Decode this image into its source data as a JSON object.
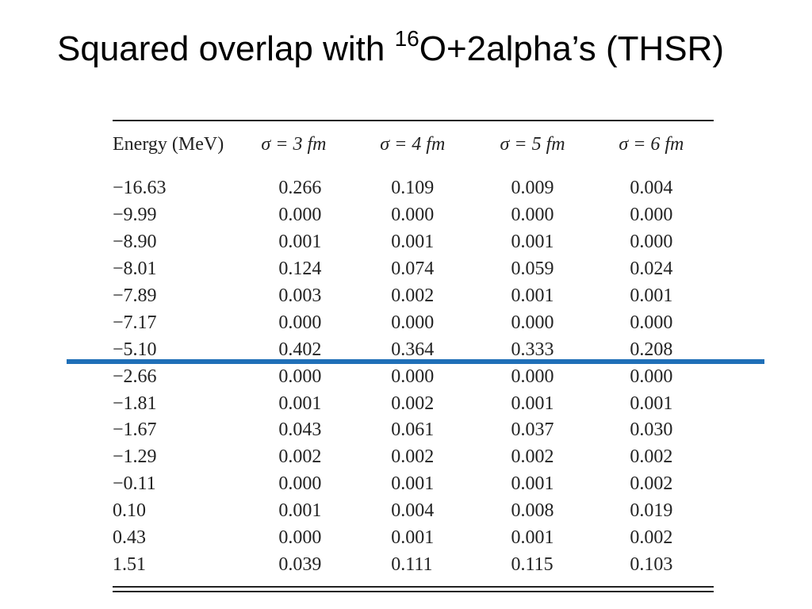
{
  "title": {
    "prefix": "Squared overlap with ",
    "superscript": "16",
    "suffix": "O+2alpha’s (THSR)"
  },
  "accent_color": "#1f6fb8",
  "table": {
    "headers": [
      "Energy (MeV)",
      "σ = 3 fm",
      "σ = 4 fm",
      "σ = 5 fm",
      "σ = 6 fm"
    ],
    "rows": [
      [
        "−16.63",
        "0.266",
        "0.109",
        "0.009",
        "0.004"
      ],
      [
        "−9.99",
        "0.000",
        "0.000",
        "0.000",
        "0.000"
      ],
      [
        "−8.90",
        "0.001",
        "0.001",
        "0.001",
        "0.000"
      ],
      [
        "−8.01",
        "0.124",
        "0.074",
        "0.059",
        "0.024"
      ],
      [
        "−7.89",
        "0.003",
        "0.002",
        "0.001",
        "0.001"
      ],
      [
        "−7.17",
        "0.000",
        "0.000",
        "0.000",
        "0.000"
      ],
      [
        "−5.10",
        "0.402",
        "0.364",
        "0.333",
        "0.208"
      ],
      [
        "−2.66",
        "0.000",
        "0.000",
        "0.000",
        "0.000"
      ],
      [
        "−1.81",
        "0.001",
        "0.002",
        "0.001",
        "0.001"
      ],
      [
        "−1.67",
        "0.043",
        "0.061",
        "0.037",
        "0.030"
      ],
      [
        "−1.29",
        "0.002",
        "0.002",
        "0.002",
        "0.002"
      ],
      [
        "−0.11",
        "0.000",
        "0.001",
        "0.001",
        "0.002"
      ],
      [
        "0.10",
        "0.001",
        "0.004",
        "0.008",
        "0.019"
      ],
      [
        "0.43",
        "0.000",
        "0.001",
        "0.001",
        "0.002"
      ],
      [
        "1.51",
        "0.039",
        "0.111",
        "0.115",
        "0.103"
      ]
    ]
  }
}
